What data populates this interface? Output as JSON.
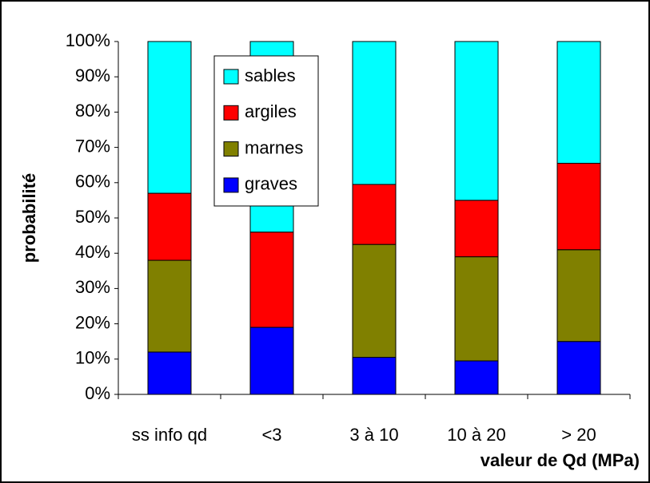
{
  "chart_data": {
    "type": "stacked_bar",
    "x_label": "valeur de Qd (MPa)",
    "y_label": "probabilité",
    "categories": [
      "ss info qd",
      "<3",
      "3 à 10",
      "10 à 20",
      "> 20"
    ],
    "series": [
      {
        "name": "graves",
        "color": "#0000ff",
        "values": [
          12,
          19,
          10.5,
          9.5,
          15
        ]
      },
      {
        "name": "marnes",
        "color": "#808000",
        "values": [
          26,
          0,
          32,
          29.5,
          26
        ]
      },
      {
        "name": "argiles",
        "color": "#ff0000",
        "values": [
          19,
          27,
          17,
          16,
          24.5
        ]
      },
      {
        "name": "sables",
        "color": "#00ffff",
        "values": [
          43,
          54,
          40.5,
          45,
          34.5
        ]
      }
    ],
    "ylim": [
      0,
      100
    ],
    "yticks": [
      {
        "value": 0,
        "label": "0%"
      },
      {
        "value": 10,
        "label": "10%"
      },
      {
        "value": 20,
        "label": "20%"
      },
      {
        "value": 30,
        "label": "30%"
      },
      {
        "value": 40,
        "label": "40%"
      },
      {
        "value": 50,
        "label": "50%"
      },
      {
        "value": 60,
        "label": "60%"
      },
      {
        "value": 70,
        "label": "70%"
      },
      {
        "value": 80,
        "label": "80%"
      },
      {
        "value": 90,
        "label": "90%"
      },
      {
        "value": 100,
        "label": "100%"
      }
    ],
    "legend": "top-left",
    "grid": false
  }
}
